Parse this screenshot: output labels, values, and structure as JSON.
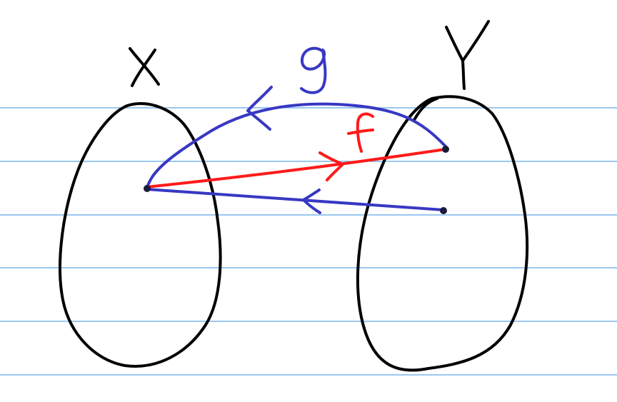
{
  "diagram": {
    "set_labels": [
      "X",
      "Y"
    ],
    "map_labels": [
      "f",
      "g"
    ],
    "colors": {
      "paper_lines": "#5fa8e6",
      "sets_ink": "#000000",
      "map_f": "#ff1a1a",
      "map_g": "#3838c4"
    }
  }
}
